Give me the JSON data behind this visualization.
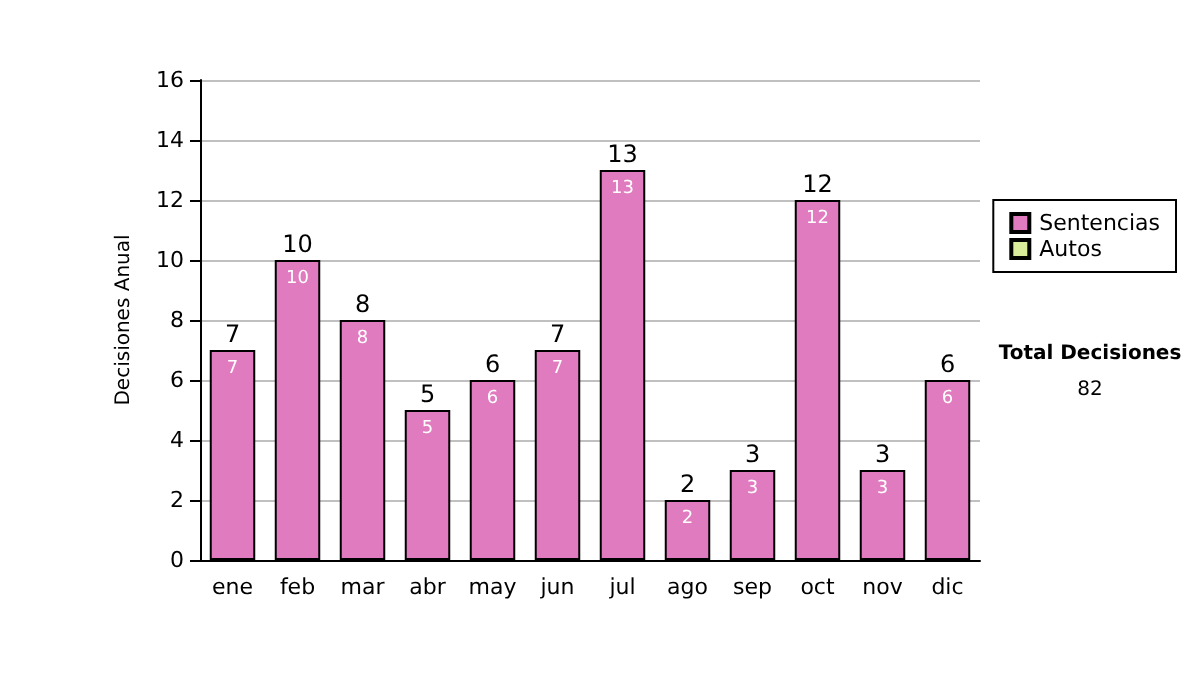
{
  "chart_data": {
    "type": "bar",
    "ylabel": "Decisiones Anual",
    "categories": [
      "ene",
      "feb",
      "mar",
      "abr",
      "may",
      "jun",
      "jul",
      "ago",
      "sep",
      "oct",
      "nov",
      "dic"
    ],
    "series": [
      {
        "name": "Sentencias",
        "color": "#e07bbf",
        "values": [
          7,
          10,
          8,
          5,
          6,
          7,
          13,
          2,
          3,
          12,
          3,
          6
        ],
        "value_labels": [
          "7",
          "10",
          "8",
          "5",
          "6",
          "7",
          "13",
          "2",
          "3",
          "12",
          "3",
          "6"
        ]
      },
      {
        "name": "Autos",
        "color": "#d8ec9c",
        "values": [
          0,
          0,
          0,
          0,
          0,
          0,
          0,
          0,
          0,
          0,
          0,
          0
        ]
      }
    ],
    "stacked": true,
    "totals": [
      "7",
      "10",
      "8",
      "5",
      "6",
      "7",
      "13",
      "2",
      "3",
      "12",
      "3",
      "6"
    ],
    "ylim": [
      0,
      16
    ],
    "yticks": [
      0,
      2,
      4,
      6,
      8,
      10,
      12,
      14,
      16
    ],
    "grid": "y",
    "legend": "right",
    "annotations": [
      "Total Decisiones",
      "82"
    ]
  }
}
